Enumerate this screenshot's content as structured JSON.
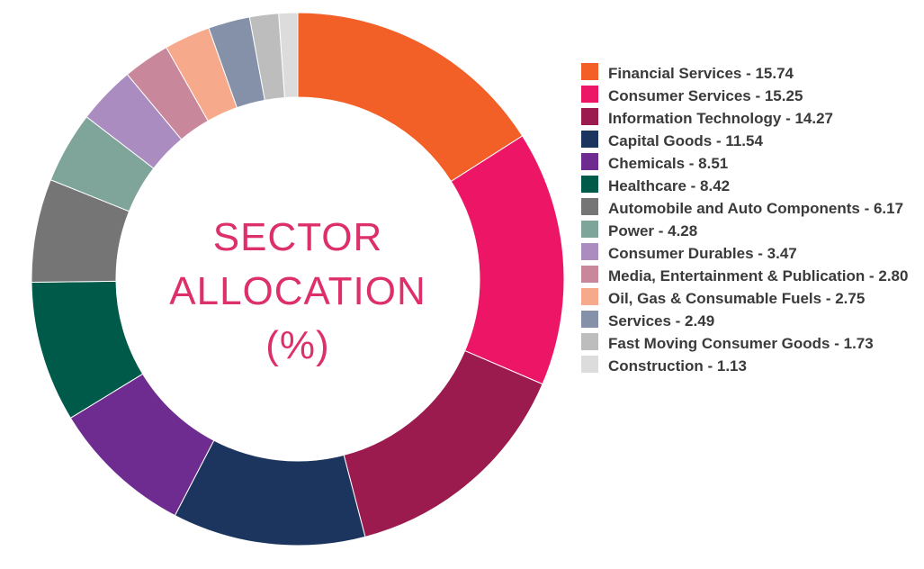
{
  "chart_data": {
    "type": "pie",
    "subtype": "donut",
    "title_lines": [
      "SECTOR",
      "ALLOCATION",
      "(%)"
    ],
    "legend_placement": "right",
    "start_angle_deg": 0,
    "direction": "clockwise",
    "slices": [
      {
        "label": "Financial Services - 15.74",
        "name": "Financial Services",
        "value": 15.74,
        "color": "#f26027"
      },
      {
        "label": "Consumer Services - 15.25",
        "name": "Consumer Services",
        "value": 15.25,
        "color": "#ed1566"
      },
      {
        "label": "Information Technology - 14.27",
        "name": "Information Technology",
        "value": 14.27,
        "color": "#9b1b4f"
      },
      {
        "label": "Capital Goods - 11.54",
        "name": "Capital Goods",
        "value": 11.54,
        "color": "#1c355e"
      },
      {
        "label": "Chemicals - 8.51",
        "name": "Chemicals",
        "value": 8.51,
        "color": "#6e2c91"
      },
      {
        "label": "Healthcare - 8.42",
        "name": "Healthcare",
        "value": 8.42,
        "color": "#005a4a"
      },
      {
        "label": "Automobile and Auto Components - 6.17",
        "name": "Automobile and Auto Components",
        "value": 6.17,
        "color": "#757575"
      },
      {
        "label": "Power - 4.28",
        "name": "Power",
        "value": 4.28,
        "color": "#7fa59a"
      },
      {
        "label": "Consumer Durables - 3.47",
        "name": "Consumer Durables",
        "value": 3.47,
        "color": "#ab8cc1"
      },
      {
        "label": "Media, Entertainment & Publication - 2.80",
        "name": "Media, Entertainment & Publication",
        "value": 2.8,
        "color": "#c9879b"
      },
      {
        "label": "Oil, Gas & Consumable Fuels - 2.75",
        "name": "Oil, Gas & Consumable Fuels",
        "value": 2.75,
        "color": "#f7a98b"
      },
      {
        "label": "Services - 2.49",
        "name": "Services",
        "value": 2.49,
        "color": "#8591a9"
      },
      {
        "label": "Fast Moving Consumer Goods - 1.73",
        "name": "Fast Moving Consumer Goods",
        "value": 1.73,
        "color": "#bdbdbd"
      },
      {
        "label": "Construction - 1.13",
        "name": "Construction",
        "value": 1.13,
        "color": "#dcdcdc"
      }
    ]
  }
}
